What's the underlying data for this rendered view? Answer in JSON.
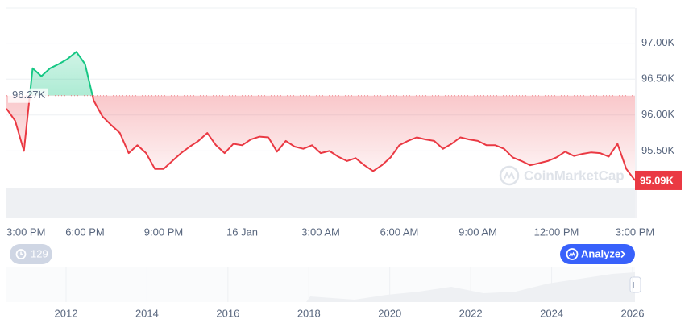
{
  "chart_data": {
    "type": "line",
    "categories": [
      "3:00 PM",
      null,
      null,
      null,
      null,
      null,
      null,
      null,
      null,
      "6:00 PM",
      null,
      null,
      null,
      null,
      null,
      null,
      null,
      null,
      "9:00 PM",
      null,
      null,
      null,
      null,
      null,
      null,
      null,
      null,
      "16 Jan",
      null,
      null,
      null,
      null,
      null,
      null,
      null,
      null,
      "3:00 AM",
      null,
      null,
      null,
      null,
      null,
      null,
      null,
      null,
      "6:00 AM",
      null,
      null,
      null,
      null,
      null,
      null,
      null,
      null,
      "9:00 AM",
      null,
      null,
      null,
      null,
      null,
      null,
      null,
      null,
      "12:00 PM",
      null,
      null,
      null,
      null,
      null,
      null,
      null,
      null,
      "3:00 PM"
    ],
    "values": [
      96090,
      95920,
      95500,
      96650,
      96540,
      96650,
      96710,
      96780,
      96880,
      96710,
      96200,
      95980,
      95860,
      95750,
      95470,
      95580,
      95470,
      95250,
      95250,
      95360,
      95470,
      95560,
      95640,
      95750,
      95580,
      95470,
      95600,
      95580,
      95660,
      95700,
      95690,
      95490,
      95640,
      95560,
      95530,
      95580,
      95470,
      95500,
      95420,
      95360,
      95400,
      95300,
      95220,
      95300,
      95410,
      95580,
      95640,
      95690,
      95660,
      95640,
      95530,
      95600,
      95690,
      95660,
      95640,
      95580,
      95580,
      95530,
      95410,
      95360,
      95300,
      95330,
      95360,
      95410,
      95490,
      95430,
      95460,
      95480,
      95470,
      95420,
      95600,
      95250,
      95090
    ],
    "value_labels": {
      "72": "95.09K"
    },
    "reference": {
      "value": 96270,
      "label": "96.27K"
    },
    "colors": {
      "up": "#16c784",
      "down": "#ea3943"
    },
    "ylim": [
      95000,
      97500
    ],
    "yticks": [
      {
        "value": 95500,
        "label": "95.50K"
      },
      {
        "value": 96000,
        "label": "96.00K"
      },
      {
        "value": 96500,
        "label": "96.50K"
      },
      {
        "value": 97000,
        "label": "97.00K"
      }
    ],
    "grid": true,
    "watermark": "CoinMarketCap",
    "navigator": {
      "xticks": [
        "2012",
        "2014",
        "2016",
        "2018",
        "2020",
        "2022",
        "2024",
        "2026"
      ]
    },
    "buttons": {
      "history": "129",
      "analyze": "Analyze"
    }
  }
}
